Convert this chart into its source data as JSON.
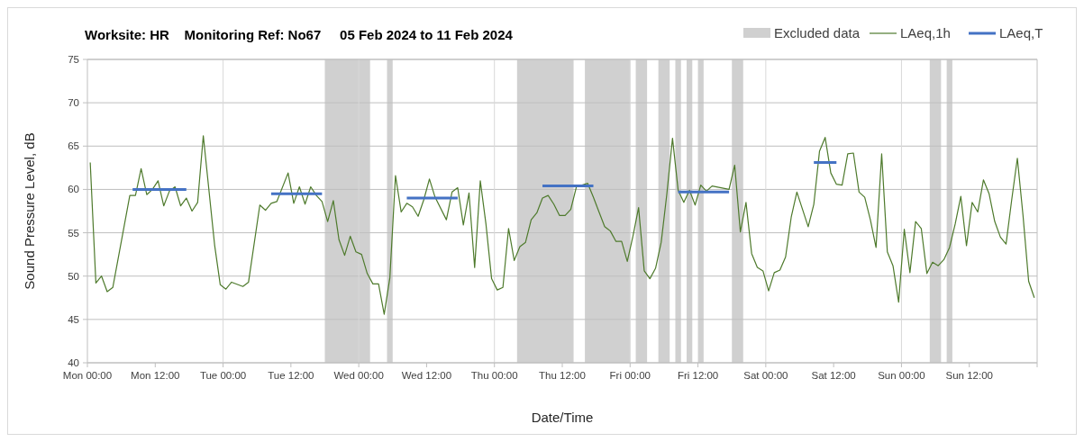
{
  "chart_data": {
    "type": "line",
    "title": "Worksite: HR    Monitoring Ref: No67     05 Feb 2024 to 11 Feb 2024",
    "xlabel": "Date/Time",
    "ylabel": "Sound Pressure Level, dB",
    "xlim": [
      "2024-02-05T00:00",
      "2024-02-12T00:00"
    ],
    "xticks": [
      {
        "value": "2024-02-05T00:00",
        "label": "Mon 00:00"
      },
      {
        "value": "2024-02-05T12:00",
        "label": "Mon 12:00"
      },
      {
        "value": "2024-02-06T00:00",
        "label": "Tue 00:00"
      },
      {
        "value": "2024-02-06T12:00",
        "label": "Tue 12:00"
      },
      {
        "value": "2024-02-07T00:00",
        "label": "Wed 00:00"
      },
      {
        "value": "2024-02-07T12:00",
        "label": "Wed 12:00"
      },
      {
        "value": "2024-02-08T00:00",
        "label": "Thu 00:00"
      },
      {
        "value": "2024-02-08T12:00",
        "label": "Thu 12:00"
      },
      {
        "value": "2024-02-09T00:00",
        "label": "Fri 00:00"
      },
      {
        "value": "2024-02-09T12:00",
        "label": "Fri 12:00"
      },
      {
        "value": "2024-02-10T00:00",
        "label": "Sat 00:00"
      },
      {
        "value": "2024-02-10T12:00",
        "label": "Sat 12:00"
      },
      {
        "value": "2024-02-11T00:00",
        "label": "Sun 00:00"
      },
      {
        "value": "2024-02-11T12:00",
        "label": "Sun 12:00"
      },
      {
        "value": "2024-02-12T00:00",
        "label": null
      }
    ],
    "ylim": [
      40,
      75
    ],
    "yticks": [
      40,
      45,
      50,
      55,
      60,
      65,
      70,
      75
    ],
    "grid": true,
    "legend": "top right",
    "bands": [
      {
        "axis": "x",
        "from": "2024-02-06T18:00",
        "to": "2024-02-07T02:00",
        "label": "Excluded data",
        "color": "#d0d0d0"
      },
      {
        "axis": "x",
        "from": "2024-02-07T05:00",
        "to": "2024-02-07T06:00",
        "color": "#d0d0d0"
      },
      {
        "axis": "x",
        "from": "2024-02-08T04:00",
        "to": "2024-02-08T14:00",
        "color": "#d0d0d0"
      },
      {
        "axis": "x",
        "from": "2024-02-08T16:00",
        "to": "2024-02-09T00:00",
        "color": "#d0d0d0"
      },
      {
        "axis": "x",
        "from": "2024-02-09T01:00",
        "to": "2024-02-09T03:00",
        "color": "#d0d0d0"
      },
      {
        "axis": "x",
        "from": "2024-02-09T05:00",
        "to": "2024-02-09T07:00",
        "color": "#d0d0d0"
      },
      {
        "axis": "x",
        "from": "2024-02-09T08:00",
        "to": "2024-02-09T09:00",
        "color": "#d0d0d0"
      },
      {
        "axis": "x",
        "from": "2024-02-09T10:00",
        "to": "2024-02-09T11:00",
        "color": "#d0d0d0"
      },
      {
        "axis": "x",
        "from": "2024-02-09T12:00",
        "to": "2024-02-09T13:00",
        "color": "#d0d0d0"
      },
      {
        "axis": "x",
        "from": "2024-02-09T18:00",
        "to": "2024-02-09T20:00",
        "color": "#d0d0d0"
      },
      {
        "axis": "x",
        "from": "2024-02-11T05:00",
        "to": "2024-02-11T07:00",
        "color": "#d0d0d0"
      },
      {
        "axis": "x",
        "from": "2024-02-11T08:00",
        "to": "2024-02-11T09:00",
        "color": "#d0d0d0"
      }
    ],
    "series": [
      {
        "name": "LAeq,1h",
        "color": "#4e7a2c",
        "x": [
          "2024-02-05T00:30",
          "2024-02-05T01:30",
          "2024-02-05T02:30",
          "2024-02-05T03:30",
          "2024-02-05T04:30",
          "2024-02-05T07:30",
          "2024-02-05T08:30",
          "2024-02-05T09:30",
          "2024-02-05T10:30",
          "2024-02-05T11:30",
          "2024-02-05T12:30",
          "2024-02-05T13:30",
          "2024-02-05T14:30",
          "2024-02-05T15:30",
          "2024-02-05T16:30",
          "2024-02-05T17:30",
          "2024-02-05T18:30",
          "2024-02-05T19:30",
          "2024-02-05T20:30",
          "2024-02-05T22:30",
          "2024-02-05T23:30",
          "2024-02-06T00:30",
          "2024-02-06T01:30",
          "2024-02-06T03:30",
          "2024-02-06T04:30",
          "2024-02-06T06:30",
          "2024-02-06T07:30",
          "2024-02-06T08:30",
          "2024-02-06T09:30",
          "2024-02-06T11:30",
          "2024-02-06T12:30",
          "2024-02-06T13:30",
          "2024-02-06T14:30",
          "2024-02-06T15:30",
          "2024-02-06T16:30",
          "2024-02-06T17:30",
          "2024-02-06T18:30",
          "2024-02-06T19:30",
          "2024-02-06T20:30",
          "2024-02-06T21:30",
          "2024-02-06T22:30",
          "2024-02-06T23:30",
          "2024-02-07T00:30",
          "2024-02-07T01:30",
          "2024-02-07T02:30",
          "2024-02-07T03:30",
          "2024-02-07T04:30",
          "2024-02-07T05:30",
          "2024-02-07T06:30",
          "2024-02-07T07:30",
          "2024-02-07T08:30",
          "2024-02-07T09:30",
          "2024-02-07T10:30",
          "2024-02-07T11:30",
          "2024-02-07T12:30",
          "2024-02-07T13:30",
          "2024-02-07T15:30",
          "2024-02-07T16:30",
          "2024-02-07T17:30",
          "2024-02-07T18:30",
          "2024-02-07T19:30",
          "2024-02-07T20:30",
          "2024-02-07T21:30",
          "2024-02-07T22:30",
          "2024-02-07T23:30",
          "2024-02-08T00:30",
          "2024-02-08T01:30",
          "2024-02-08T02:30",
          "2024-02-08T03:30",
          "2024-02-08T04:30",
          "2024-02-08T05:30",
          "2024-02-08T06:30",
          "2024-02-08T07:30",
          "2024-02-08T08:30",
          "2024-02-08T09:30",
          "2024-02-08T10:30",
          "2024-02-08T11:30",
          "2024-02-08T12:30",
          "2024-02-08T13:30",
          "2024-02-08T14:30",
          "2024-02-08T16:30",
          "2024-02-08T17:30",
          "2024-02-08T18:30",
          "2024-02-08T19:30",
          "2024-02-08T20:30",
          "2024-02-08T21:30",
          "2024-02-08T22:30",
          "2024-02-08T23:30",
          "2024-02-09T00:30",
          "2024-02-09T01:30",
          "2024-02-09T02:30",
          "2024-02-09T03:30",
          "2024-02-09T04:30",
          "2024-02-09T05:30",
          "2024-02-09T06:30",
          "2024-02-09T07:30",
          "2024-02-09T08:30",
          "2024-02-09T09:30",
          "2024-02-09T10:30",
          "2024-02-09T11:30",
          "2024-02-09T12:30",
          "2024-02-09T13:30",
          "2024-02-09T14:30",
          "2024-02-09T17:30",
          "2024-02-09T18:30",
          "2024-02-09T19:30",
          "2024-02-09T20:30",
          "2024-02-09T21:30",
          "2024-02-09T22:30",
          "2024-02-09T23:30",
          "2024-02-10T00:30",
          "2024-02-10T01:30",
          "2024-02-10T02:30",
          "2024-02-10T03:30",
          "2024-02-10T04:30",
          "2024-02-10T05:30",
          "2024-02-10T06:30",
          "2024-02-10T07:30",
          "2024-02-10T08:30",
          "2024-02-10T09:30",
          "2024-02-10T10:30",
          "2024-02-10T11:30",
          "2024-02-10T12:30",
          "2024-02-10T13:30",
          "2024-02-10T14:30",
          "2024-02-10T15:30",
          "2024-02-10T16:30",
          "2024-02-10T17:30",
          "2024-02-10T18:30",
          "2024-02-10T19:30",
          "2024-02-10T20:30",
          "2024-02-10T21:30",
          "2024-02-10T22:30",
          "2024-02-10T23:30",
          "2024-02-11T00:30",
          "2024-02-11T01:30",
          "2024-02-11T02:30",
          "2024-02-11T03:30",
          "2024-02-11T04:30",
          "2024-02-11T05:30",
          "2024-02-11T06:30",
          "2024-02-11T07:30",
          "2024-02-11T08:30",
          "2024-02-11T09:30",
          "2024-02-11T10:30",
          "2024-02-11T11:30",
          "2024-02-11T12:30",
          "2024-02-11T13:30",
          "2024-02-11T14:30",
          "2024-02-11T15:30",
          "2024-02-11T16:30",
          "2024-02-11T17:30",
          "2024-02-11T18:30",
          "2024-02-11T19:30",
          "2024-02-11T20:30",
          "2024-02-11T21:30",
          "2024-02-11T22:30",
          "2024-02-11T23:30"
        ],
        "values": [
          63.1,
          49.2,
          50.0,
          48.2,
          48.7,
          59.3,
          59.3,
          62.4,
          59.4,
          60.0,
          61.0,
          58.1,
          59.8,
          60.3,
          58.1,
          59.0,
          57.5,
          58.5,
          66.2,
          53.6,
          49.0,
          48.5,
          49.3,
          48.8,
          49.3,
          58.2,
          57.6,
          58.4,
          58.6,
          61.9,
          58.4,
          60.3,
          58.3,
          60.3,
          59.3,
          58.6,
          56.3,
          58.7,
          54.2,
          52.4,
          54.6,
          52.8,
          52.5,
          50.3,
          49.1,
          49.1,
          45.6,
          49.8,
          61.6,
          57.4,
          58.4,
          58.0,
          56.9,
          58.8,
          61.2,
          59.1,
          56.5,
          59.7,
          60.2,
          55.9,
          59.6,
          51.0,
          61.0,
          56.0,
          49.7,
          48.4,
          48.7,
          55.5,
          51.8,
          53.4,
          53.9,
          56.5,
          57.3,
          59.0,
          59.3,
          58.3,
          57.0,
          57.0,
          57.7,
          60.3,
          60.7,
          59.1,
          57.4,
          55.7,
          55.2,
          54.0,
          54.0,
          51.7,
          54.6,
          57.9,
          50.6,
          49.7,
          50.9,
          53.9,
          59.5,
          65.9,
          59.9,
          58.5,
          59.9,
          58.2,
          60.5,
          59.8,
          60.4,
          60.0,
          62.8,
          55.1,
          58.5,
          52.6,
          51.0,
          50.6,
          48.3,
          50.4,
          50.7,
          52.2,
          56.8,
          59.7,
          57.7,
          55.7,
          58.3,
          64.4,
          66.0,
          61.9,
          60.6,
          60.5,
          64.1,
          64.2,
          59.7,
          59.1,
          56.5,
          53.3,
          64.1,
          52.8,
          51.2,
          47.0,
          55.4,
          50.4,
          56.3,
          55.5,
          50.3,
          51.6,
          51.2,
          51.9,
          53.3,
          56.0,
          59.2,
          53.5,
          58.5,
          57.4,
          61.1,
          59.5,
          56.3,
          54.5,
          53.7,
          58.8,
          63.6,
          57.0,
          49.4,
          47.5
        ]
      },
      {
        "name": "LAeq,T",
        "type": "step",
        "color": "#4472c4",
        "x": [
          "2024-02-05T08:00",
          "2024-02-05T17:30",
          "2024-02-06T01:00",
          "2024-02-06T08:30",
          "2024-02-06T17:30",
          "2024-02-07T01:00",
          "2024-02-07T08:30",
          "2024-02-07T17:30",
          "2024-02-08T01:00",
          "2024-02-08T08:30",
          "2024-02-08T17:30",
          "2024-02-09T01:00",
          "2024-02-09T08:30",
          "2024-02-09T17:30",
          "2024-02-10T01:00",
          "2024-02-10T08:30",
          "2024-02-10T12:30"
        ],
        "values": [
          60.0,
          60.0,
          null,
          59.5,
          59.5,
          null,
          59.0,
          59.0,
          null,
          60.4,
          60.4,
          null,
          59.7,
          59.7,
          null,
          63.1,
          63.1
        ]
      }
    ]
  }
}
